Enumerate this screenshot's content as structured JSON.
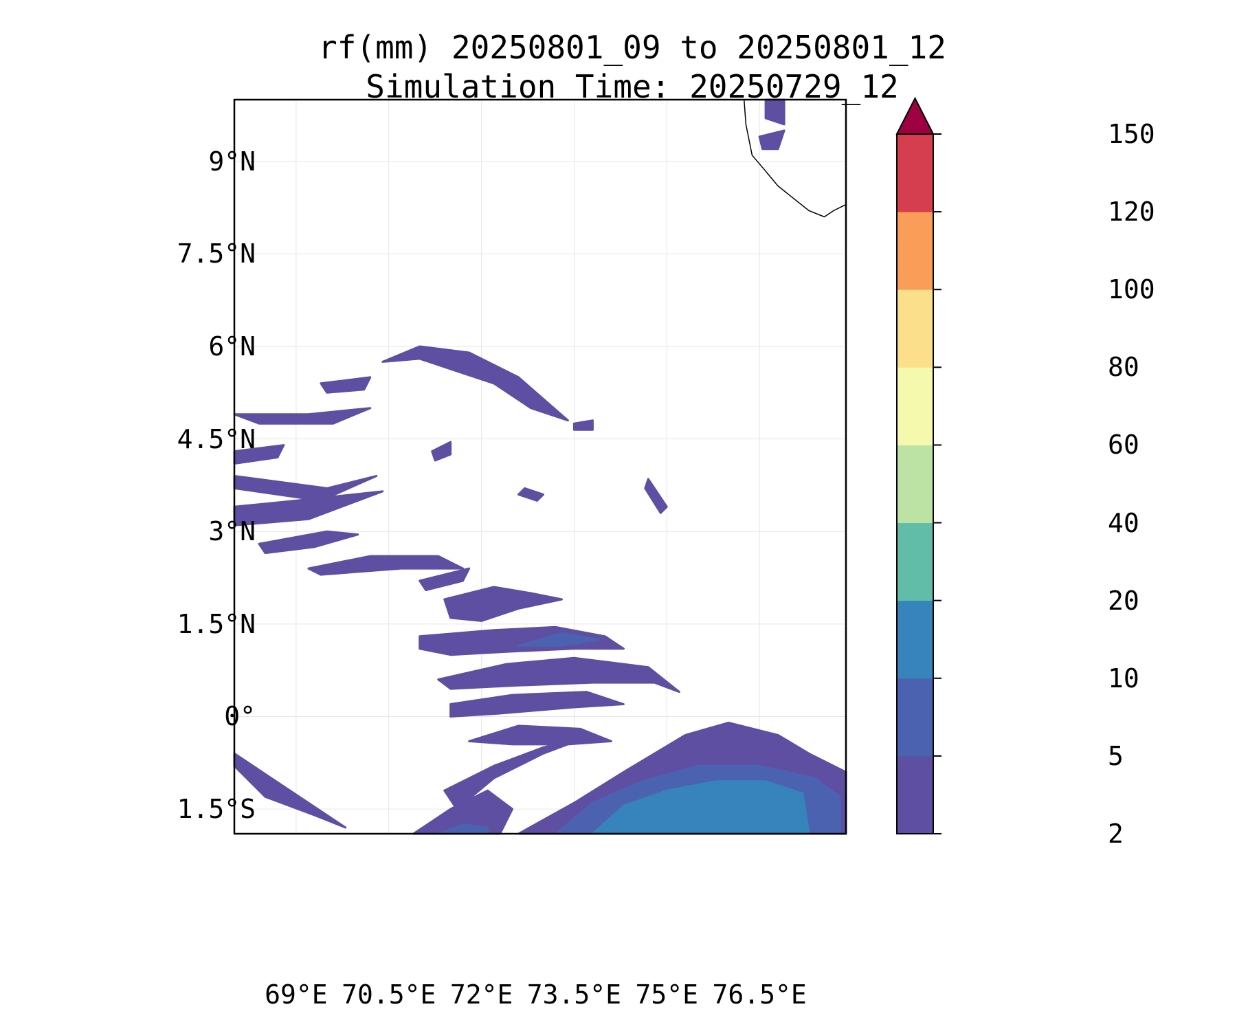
{
  "title_line1": "rf(mm) 20250801_09 to 20250801_12",
  "title_line2": "Simulation Time: 20250729_12",
  "map": {
    "extent": {
      "lon": [
        68.0,
        77.9
      ],
      "lat": [
        -1.9,
        10.0
      ]
    },
    "lat_ticks": [
      {
        "value": 9.0,
        "label": "9°N"
      },
      {
        "value": 7.5,
        "label": "7.5°N"
      },
      {
        "value": 6.0,
        "label": "6°N"
      },
      {
        "value": 4.5,
        "label": "4.5°N"
      },
      {
        "value": 3.0,
        "label": "3°N"
      },
      {
        "value": 1.5,
        "label": "1.5°N"
      },
      {
        "value": 0.0,
        "label": "0°"
      },
      {
        "value": -1.5,
        "label": "1.5°S"
      }
    ],
    "lon_ticks": [
      {
        "value": 69.0,
        "label": "69°E"
      },
      {
        "value": 70.5,
        "label": "70.5°E"
      },
      {
        "value": 72.0,
        "label": "72°E"
      },
      {
        "value": 73.5,
        "label": "73.5°E"
      },
      {
        "value": 75.0,
        "label": "75°E"
      },
      {
        "value": 76.5,
        "label": "76.5°E"
      }
    ],
    "coastline": [
      [
        76.25,
        10.0
      ],
      [
        76.28,
        9.6
      ],
      [
        76.38,
        9.1
      ],
      [
        76.55,
        8.9
      ],
      [
        76.8,
        8.6
      ],
      [
        77.05,
        8.4
      ],
      [
        77.3,
        8.2
      ],
      [
        77.55,
        8.1
      ],
      [
        77.7,
        8.2
      ],
      [
        77.9,
        8.3
      ]
    ],
    "rain_bands": [
      {
        "level": 0,
        "points": [
          [
            68.0,
            4.9
          ],
          [
            69.2,
            4.9
          ],
          [
            70.2,
            5.0
          ],
          [
            69.6,
            4.75
          ],
          [
            68.4,
            4.75
          ]
        ]
      },
      {
        "level": 0,
        "points": [
          [
            68.0,
            4.3
          ],
          [
            68.8,
            4.4
          ],
          [
            68.7,
            4.2
          ],
          [
            68.0,
            4.1
          ]
        ]
      },
      {
        "level": 0,
        "points": [
          [
            68.0,
            3.9
          ],
          [
            69.5,
            3.7
          ],
          [
            70.3,
            3.9
          ],
          [
            69.4,
            3.5
          ],
          [
            68.0,
            3.7
          ]
        ]
      },
      {
        "level": 0,
        "points": [
          [
            68.0,
            3.4
          ],
          [
            69.0,
            3.5
          ],
          [
            70.4,
            3.65
          ],
          [
            69.2,
            3.2
          ],
          [
            68.0,
            3.1
          ]
        ]
      },
      {
        "level": 0,
        "points": [
          [
            68.4,
            2.8
          ],
          [
            69.5,
            3.0
          ],
          [
            70.0,
            2.95
          ],
          [
            69.3,
            2.75
          ],
          [
            68.5,
            2.65
          ]
        ]
      },
      {
        "level": 0,
        "points": [
          [
            69.2,
            2.4
          ],
          [
            70.2,
            2.6
          ],
          [
            71.3,
            2.6
          ],
          [
            71.7,
            2.4
          ],
          [
            70.7,
            2.4
          ],
          [
            69.4,
            2.3
          ]
        ]
      },
      {
        "level": 0,
        "points": [
          [
            71.4,
            1.9
          ],
          [
            72.2,
            2.1
          ],
          [
            72.8,
            2.0
          ],
          [
            73.3,
            1.9
          ],
          [
            72.6,
            1.75
          ],
          [
            72.0,
            1.55
          ],
          [
            71.5,
            1.6
          ]
        ]
      },
      {
        "level": 0,
        "points": [
          [
            71.0,
            2.2
          ],
          [
            71.8,
            2.4
          ],
          [
            71.7,
            2.2
          ],
          [
            71.1,
            2.05
          ]
        ]
      },
      {
        "level": 0,
        "points": [
          [
            71.0,
            1.3
          ],
          [
            72.2,
            1.4
          ],
          [
            73.2,
            1.45
          ],
          [
            74.0,
            1.3
          ],
          [
            74.3,
            1.1
          ],
          [
            73.5,
            1.1
          ],
          [
            72.4,
            1.05
          ],
          [
            71.5,
            1.0
          ],
          [
            71.0,
            1.1
          ]
        ]
      },
      {
        "level": 0,
        "points": [
          [
            71.3,
            0.6
          ],
          [
            72.4,
            0.85
          ],
          [
            73.5,
            0.95
          ],
          [
            74.7,
            0.8
          ],
          [
            75.2,
            0.4
          ],
          [
            74.8,
            0.55
          ],
          [
            73.8,
            0.55
          ],
          [
            72.5,
            0.5
          ],
          [
            71.5,
            0.45
          ]
        ]
      },
      {
        "level": 1,
        "points": [
          [
            72.6,
            1.15
          ],
          [
            73.3,
            1.35
          ],
          [
            73.9,
            1.25
          ],
          [
            73.3,
            1.15
          ]
        ]
      },
      {
        "level": 0,
        "points": [
          [
            71.5,
            0.2
          ],
          [
            72.5,
            0.35
          ],
          [
            73.7,
            0.4
          ],
          [
            74.3,
            0.2
          ],
          [
            73.5,
            0.15
          ],
          [
            72.3,
            0.05
          ],
          [
            71.5,
            0.0
          ]
        ]
      },
      {
        "level": 0,
        "points": [
          [
            68.0,
            -0.8
          ],
          [
            68.5,
            -1.3
          ],
          [
            69.3,
            -1.6
          ],
          [
            69.8,
            -1.8
          ],
          [
            69.2,
            -1.4
          ],
          [
            68.6,
            -1.0
          ],
          [
            68.0,
            -0.6
          ]
        ]
      },
      {
        "level": 0,
        "points": [
          [
            71.4,
            -1.2
          ],
          [
            72.2,
            -0.8
          ],
          [
            73.0,
            -0.5
          ],
          [
            73.8,
            -0.3
          ],
          [
            73.0,
            -0.6
          ],
          [
            72.2,
            -1.0
          ],
          [
            71.6,
            -1.5
          ]
        ]
      },
      {
        "level": 0,
        "points": [
          [
            71.8,
            -0.4
          ],
          [
            72.6,
            -0.15
          ],
          [
            73.6,
            -0.2
          ],
          [
            74.1,
            -0.4
          ],
          [
            73.4,
            -0.45
          ],
          [
            72.5,
            -0.45
          ]
        ]
      },
      {
        "level": 0,
        "points": [
          [
            72.6,
            -1.9
          ],
          [
            73.5,
            -1.4
          ],
          [
            74.3,
            -0.9
          ],
          [
            75.3,
            -0.3
          ],
          [
            76.0,
            -0.1
          ],
          [
            76.8,
            -0.3
          ],
          [
            77.3,
            -0.6
          ],
          [
            77.9,
            -0.9
          ],
          [
            77.9,
            -1.9
          ]
        ]
      },
      {
        "level": 1,
        "points": [
          [
            73.2,
            -1.9
          ],
          [
            73.8,
            -1.4
          ],
          [
            74.6,
            -1.05
          ],
          [
            75.5,
            -0.8
          ],
          [
            76.5,
            -0.8
          ],
          [
            77.4,
            -1.0
          ],
          [
            77.8,
            -1.3
          ],
          [
            77.8,
            -1.9
          ]
        ]
      },
      {
        "level": 2,
        "points": [
          [
            73.8,
            -1.9
          ],
          [
            74.3,
            -1.45
          ],
          [
            75.0,
            -1.2
          ],
          [
            75.8,
            -1.05
          ],
          [
            76.6,
            -1.05
          ],
          [
            77.2,
            -1.25
          ],
          [
            77.3,
            -1.9
          ]
        ]
      },
      {
        "level": 0,
        "points": [
          [
            70.9,
            -1.9
          ],
          [
            71.5,
            -1.5
          ],
          [
            72.1,
            -1.2
          ],
          [
            72.5,
            -1.5
          ],
          [
            72.3,
            -1.9
          ]
        ]
      },
      {
        "level": 1,
        "points": [
          [
            71.3,
            -1.9
          ],
          [
            71.7,
            -1.75
          ],
          [
            72.1,
            -1.8
          ],
          [
            72.1,
            -1.9
          ]
        ]
      },
      {
        "level": 0,
        "points": [
          [
            69.4,
            5.4
          ],
          [
            70.2,
            5.5
          ],
          [
            70.1,
            5.3
          ],
          [
            69.5,
            5.25
          ]
        ]
      },
      {
        "level": 0,
        "points": [
          [
            70.4,
            5.75
          ],
          [
            71.0,
            6.0
          ],
          [
            71.8,
            5.9
          ],
          [
            72.6,
            5.5
          ],
          [
            73.4,
            4.8
          ],
          [
            72.8,
            5.0
          ],
          [
            72.2,
            5.4
          ],
          [
            71.6,
            5.6
          ],
          [
            71.0,
            5.8
          ]
        ]
      },
      {
        "level": 0,
        "points": [
          [
            71.2,
            4.3
          ],
          [
            71.5,
            4.45
          ],
          [
            71.5,
            4.25
          ],
          [
            71.25,
            4.15
          ]
        ]
      },
      {
        "level": 0,
        "points": [
          [
            72.7,
            3.7
          ],
          [
            73.0,
            3.6
          ],
          [
            72.9,
            3.5
          ],
          [
            72.6,
            3.6
          ]
        ]
      },
      {
        "level": 0,
        "points": [
          [
            73.5,
            4.75
          ],
          [
            73.8,
            4.8
          ],
          [
            73.8,
            4.65
          ],
          [
            73.5,
            4.65
          ]
        ]
      },
      {
        "level": 0,
        "points": [
          [
            76.6,
            10.0
          ],
          [
            76.9,
            10.0
          ],
          [
            76.9,
            9.6
          ],
          [
            76.6,
            9.7
          ]
        ]
      },
      {
        "level": 0,
        "points": [
          [
            76.5,
            9.4
          ],
          [
            76.9,
            9.5
          ],
          [
            76.8,
            9.2
          ],
          [
            76.55,
            9.2
          ]
        ]
      },
      {
        "level": 0,
        "points": [
          [
            74.7,
            3.85
          ],
          [
            75.0,
            3.4
          ],
          [
            74.9,
            3.3
          ],
          [
            74.65,
            3.7
          ]
        ]
      }
    ]
  },
  "colorbar": {
    "levels": [
      "2",
      "5",
      "10",
      "20",
      "40",
      "60",
      "80",
      "100",
      "120",
      "150"
    ],
    "colors": [
      "#5e4fa2",
      "#4b62b0",
      "#3783bb",
      "#62bda8",
      "#bde3a4",
      "#f4f9ad",
      "#fbdf8b",
      "#f99d59",
      "#d53e4f"
    ],
    "extend_color": "#9e0142"
  }
}
